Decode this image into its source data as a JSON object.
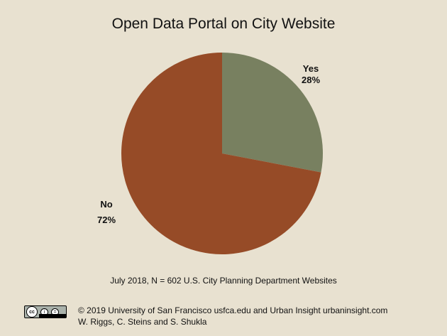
{
  "chart_data": {
    "type": "pie",
    "title": "Open Data Portal on City Website",
    "slices": [
      {
        "label": "Yes",
        "value": 28,
        "display": "28%",
        "color": "#788060"
      },
      {
        "label": "No",
        "value": 72,
        "display": "72%",
        "color": "#964b27"
      }
    ]
  },
  "note": "July 2018, N = 602 U.S. City Planning Department Websites",
  "footer": {
    "line1": "© 2019 University of San Francisco usfca.edu and Urban Insight urbaninsight.com",
    "line2": "W. Riggs, C. Steins and S. Shukla"
  },
  "license_badge": {
    "icon": "creative-commons-icon",
    "text": "cc",
    "parts": [
      "i",
      "="
    ],
    "sub": "BY ND"
  }
}
